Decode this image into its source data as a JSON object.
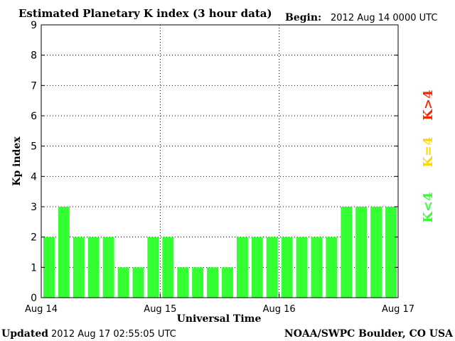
{
  "header": {
    "title": "Estimated Planetary K index (3 hour data)",
    "begin_label": "Begin:",
    "begin_value": "2012 Aug 14 0000 UTC"
  },
  "footer": {
    "updated_label": "Updated",
    "updated_value": "2012 Aug 17 02:55:05 UTC",
    "source": "NOAA/SWPC Boulder, CO USA"
  },
  "legend": {
    "below": "K<4",
    "equal": "K=4",
    "above": "K>4",
    "colors": {
      "below": "#33ff33",
      "equal": "#ffd700",
      "above": "#ff2200"
    }
  },
  "chart_data": {
    "type": "bar",
    "title": "Estimated Planetary K index (3 hour data)",
    "xlabel": "Universal Time",
    "ylabel": "Kp index",
    "ylim": [
      0,
      9
    ],
    "yticks": [
      "0",
      "1",
      "2",
      "3",
      "4",
      "5",
      "6",
      "7",
      "8",
      "9"
    ],
    "xticks": [
      "Aug 14",
      "Aug 15",
      "Aug 16",
      "Aug 17"
    ],
    "values": [
      2,
      3,
      2,
      2,
      2,
      1,
      1,
      2,
      2,
      1,
      1,
      1,
      1,
      2,
      2,
      2,
      2,
      2,
      2,
      2,
      3,
      3,
      3,
      3
    ],
    "grid": true,
    "bar_color": "#33ff33"
  }
}
